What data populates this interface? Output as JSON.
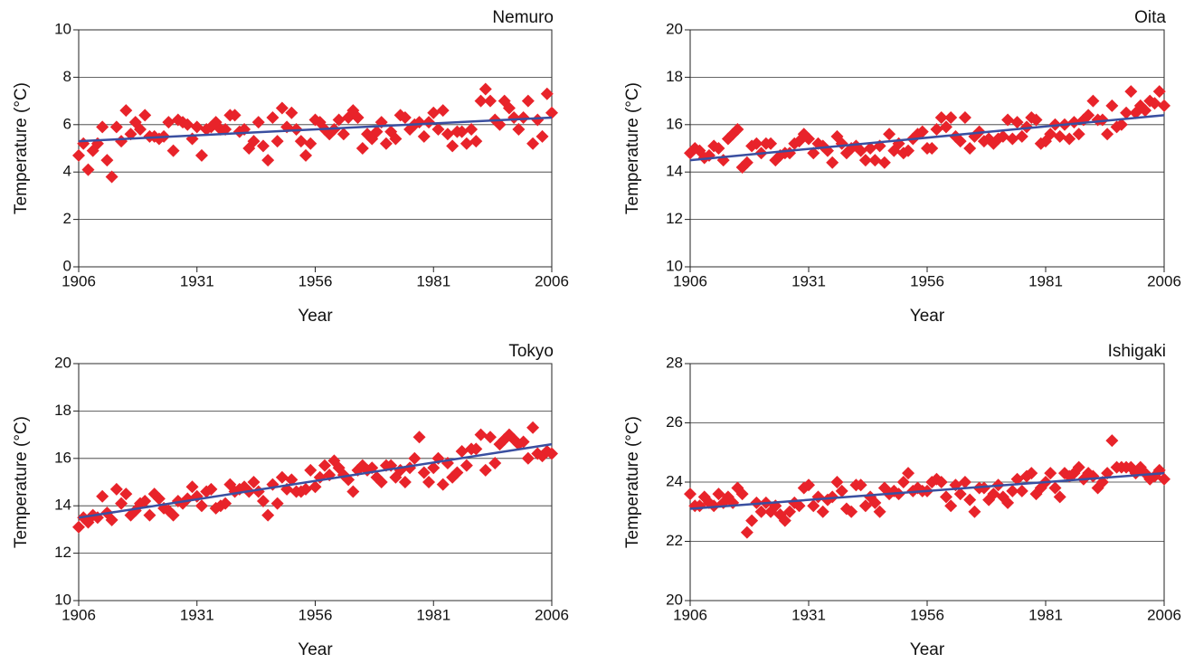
{
  "chart_data": [
    {
      "type": "scatter",
      "title": "Nemuro",
      "x_label": "Year",
      "y_label": "Temperature (°C)",
      "grid": true,
      "color": "#e8232a",
      "xlim": [
        1906,
        2006
      ],
      "xticks": [
        1906,
        1931,
        1956,
        1981,
        2006
      ],
      "ylim": [
        0,
        10
      ],
      "yticks": [
        0,
        2,
        4,
        6,
        8,
        10
      ],
      "x": [
        1906,
        1907,
        1908,
        1909,
        1910,
        1911,
        1912,
        1913,
        1914,
        1915,
        1916,
        1917,
        1918,
        1919,
        1920,
        1921,
        1922,
        1923,
        1924,
        1925,
        1926,
        1927,
        1928,
        1929,
        1930,
        1931,
        1932,
        1933,
        1934,
        1935,
        1936,
        1937,
        1938,
        1939,
        1940,
        1941,
        1942,
        1943,
        1944,
        1945,
        1946,
        1947,
        1948,
        1949,
        1950,
        1951,
        1952,
        1953,
        1954,
        1955,
        1956,
        1957,
        1958,
        1959,
        1960,
        1961,
        1962,
        1963,
        1964,
        1965,
        1966,
        1967,
        1968,
        1969,
        1970,
        1971,
        1972,
        1973,
        1974,
        1975,
        1976,
        1977,
        1978,
        1979,
        1980,
        1981,
        1982,
        1983,
        1984,
        1985,
        1986,
        1987,
        1988,
        1989,
        1990,
        1991,
        1992,
        1993,
        1994,
        1995,
        1996,
        1997,
        1998,
        1999,
        2000,
        2001,
        2002,
        2003,
        2004,
        2005,
        2006
      ],
      "values": [
        4.7,
        5.2,
        4.1,
        4.9,
        5.2,
        5.9,
        4.5,
        3.8,
        5.9,
        5.3,
        6.6,
        5.6,
        6.1,
        5.8,
        6.4,
        5.5,
        5.5,
        5.4,
        5.5,
        6.1,
        4.9,
        6.2,
        6.1,
        6.0,
        5.4,
        5.9,
        4.7,
        5.8,
        5.9,
        6.1,
        5.8,
        5.8,
        6.4,
        6.4,
        5.7,
        5.8,
        5.0,
        5.3,
        6.1,
        5.1,
        4.5,
        6.3,
        5.3,
        6.7,
        5.9,
        6.5,
        5.8,
        5.3,
        4.7,
        5.2,
        6.2,
        6.1,
        5.8,
        5.6,
        5.8,
        6.2,
        5.6,
        6.3,
        6.6,
        6.3,
        5.0,
        5.6,
        5.4,
        5.7,
        6.1,
        5.2,
        5.7,
        5.4,
        6.4,
        6.3,
        5.8,
        6.0,
        6.1,
        5.5,
        6.1,
        6.5,
        5.8,
        6.6,
        5.6,
        5.1,
        5.7,
        5.7,
        5.2,
        5.8,
        5.3,
        7.0,
        7.5,
        7.0,
        6.2,
        6.0,
        7.0,
        6.7,
        6.3,
        5.8,
        6.3,
        7.0,
        5.2,
        6.2,
        5.5,
        7.3,
        6.5
      ],
      "trend": {
        "x": [
          1906,
          2006
        ],
        "values": [
          5.3,
          6.3
        ],
        "color": "#3a4fa0"
      }
    },
    {
      "type": "scatter",
      "title": "Oita",
      "x_label": "Year",
      "y_label": "Temperature (°C)",
      "grid": true,
      "color": "#e8232a",
      "xlim": [
        1906,
        2006
      ],
      "xticks": [
        1906,
        1931,
        1956,
        1981,
        2006
      ],
      "ylim": [
        10,
        20
      ],
      "yticks": [
        10,
        12,
        14,
        16,
        18,
        20
      ],
      "x": [
        1906,
        1907,
        1908,
        1909,
        1910,
        1911,
        1912,
        1913,
        1914,
        1915,
        1916,
        1917,
        1918,
        1919,
        1920,
        1921,
        1922,
        1923,
        1924,
        1925,
        1926,
        1927,
        1928,
        1929,
        1930,
        1931,
        1932,
        1933,
        1934,
        1935,
        1936,
        1937,
        1938,
        1939,
        1940,
        1941,
        1942,
        1943,
        1944,
        1945,
        1946,
        1947,
        1948,
        1949,
        1950,
        1951,
        1952,
        1953,
        1954,
        1955,
        1956,
        1957,
        1958,
        1959,
        1960,
        1961,
        1962,
        1963,
        1964,
        1965,
        1966,
        1967,
        1968,
        1969,
        1970,
        1971,
        1972,
        1973,
        1974,
        1975,
        1976,
        1977,
        1978,
        1979,
        1980,
        1981,
        1982,
        1983,
        1984,
        1985,
        1986,
        1987,
        1988,
        1989,
        1990,
        1991,
        1992,
        1993,
        1994,
        1995,
        1996,
        1997,
        1998,
        1999,
        2000,
        2001,
        2002,
        2003,
        2004,
        2005,
        2006
      ],
      "values": [
        14.8,
        15.0,
        14.9,
        14.6,
        14.7,
        15.1,
        15.0,
        14.5,
        15.4,
        15.6,
        15.8,
        14.2,
        14.4,
        15.1,
        15.2,
        14.8,
        15.2,
        15.2,
        14.5,
        14.7,
        14.8,
        14.8,
        15.2,
        15.3,
        15.6,
        15.4,
        14.8,
        15.2,
        15.1,
        14.9,
        14.4,
        15.5,
        15.2,
        14.8,
        15.0,
        15.1,
        14.9,
        14.5,
        15.0,
        14.5,
        15.1,
        14.4,
        15.6,
        14.9,
        15.2,
        14.8,
        14.9,
        15.4,
        15.6,
        15.7,
        15.0,
        15.0,
        15.8,
        16.3,
        15.9,
        16.3,
        15.5,
        15.3,
        16.3,
        15.0,
        15.5,
        15.7,
        15.3,
        15.4,
        15.2,
        15.4,
        15.5,
        16.2,
        15.4,
        16.1,
        15.5,
        15.9,
        16.3,
        16.2,
        15.2,
        15.3,
        15.6,
        16.0,
        15.5,
        16.0,
        15.4,
        16.1,
        15.6,
        16.2,
        16.4,
        17.0,
        16.2,
        16.2,
        15.6,
        16.8,
        15.9,
        16.0,
        16.5,
        17.4,
        16.5,
        16.8,
        16.6,
        17.0,
        16.9,
        17.4,
        16.8
      ],
      "trend": {
        "x": [
          1906,
          2006
        ],
        "values": [
          14.5,
          16.4
        ],
        "color": "#3a4fa0"
      }
    },
    {
      "type": "scatter",
      "title": "Tokyo",
      "x_label": "Year",
      "y_label": "Temperature (°C)",
      "grid": true,
      "color": "#e8232a",
      "xlim": [
        1906,
        2006
      ],
      "xticks": [
        1906,
        1931,
        1956,
        1981,
        2006
      ],
      "ylim": [
        10,
        20
      ],
      "yticks": [
        10,
        12,
        14,
        16,
        18,
        20
      ],
      "x": [
        1906,
        1907,
        1908,
        1909,
        1910,
        1911,
        1912,
        1913,
        1914,
        1915,
        1916,
        1917,
        1918,
        1919,
        1920,
        1921,
        1922,
        1923,
        1924,
        1925,
        1926,
        1927,
        1928,
        1929,
        1930,
        1931,
        1932,
        1933,
        1934,
        1935,
        1936,
        1937,
        1938,
        1939,
        1940,
        1941,
        1942,
        1943,
        1944,
        1945,
        1946,
        1947,
        1948,
        1949,
        1950,
        1951,
        1952,
        1953,
        1954,
        1955,
        1956,
        1957,
        1958,
        1959,
        1960,
        1961,
        1962,
        1963,
        1964,
        1965,
        1966,
        1967,
        1968,
        1969,
        1970,
        1971,
        1972,
        1973,
        1974,
        1975,
        1976,
        1977,
        1978,
        1979,
        1980,
        1981,
        1982,
        1983,
        1984,
        1985,
        1986,
        1987,
        1988,
        1989,
        1990,
        1991,
        1992,
        1993,
        1994,
        1995,
        1996,
        1997,
        1998,
        1999,
        2000,
        2001,
        2002,
        2003,
        2004,
        2005,
        2006
      ],
      "values": [
        13.1,
        13.5,
        13.3,
        13.6,
        13.5,
        14.4,
        13.7,
        13.4,
        14.7,
        14.1,
        14.5,
        13.6,
        13.8,
        14.1,
        14.2,
        13.6,
        14.5,
        14.3,
        13.9,
        13.8,
        13.6,
        14.2,
        14.1,
        14.3,
        14.8,
        14.4,
        14.0,
        14.6,
        14.7,
        13.9,
        14.0,
        14.1,
        14.9,
        14.6,
        14.7,
        14.8,
        14.6,
        15.0,
        14.6,
        14.2,
        13.6,
        14.9,
        14.1,
        15.2,
        14.7,
        15.1,
        14.6,
        14.6,
        14.7,
        15.5,
        14.8,
        15.2,
        15.7,
        15.3,
        15.9,
        15.6,
        15.3,
        15.1,
        14.6,
        15.5,
        15.7,
        15.5,
        15.6,
        15.2,
        15.0,
        15.7,
        15.7,
        15.2,
        15.5,
        15.0,
        15.6,
        16.0,
        16.9,
        15.4,
        15.0,
        15.6,
        16.0,
        14.9,
        15.8,
        15.2,
        15.4,
        16.3,
        15.7,
        16.4,
        16.4,
        17.0,
        15.5,
        16.9,
        15.8,
        16.6,
        16.8,
        17.0,
        16.8,
        16.6,
        16.7,
        16.0,
        17.3,
        16.2,
        16.1,
        16.3,
        16.2
      ],
      "trend": {
        "x": [
          1906,
          2006
        ],
        "values": [
          13.5,
          16.6
        ],
        "color": "#3a4fa0"
      }
    },
    {
      "type": "scatter",
      "title": "Ishigaki",
      "x_label": "Year",
      "y_label": "Temperature (°C)",
      "grid": true,
      "color": "#e8232a",
      "xlim": [
        1906,
        2006
      ],
      "xticks": [
        1906,
        1931,
        1956,
        1981,
        2006
      ],
      "ylim": [
        20,
        28
      ],
      "yticks": [
        20,
        22,
        24,
        26,
        28
      ],
      "x": [
        1906,
        1907,
        1908,
        1909,
        1910,
        1911,
        1912,
        1913,
        1914,
        1915,
        1916,
        1917,
        1918,
        1919,
        1920,
        1921,
        1922,
        1923,
        1924,
        1925,
        1926,
        1927,
        1928,
        1929,
        1930,
        1931,
        1932,
        1933,
        1934,
        1935,
        1936,
        1937,
        1938,
        1939,
        1940,
        1941,
        1942,
        1943,
        1944,
        1945,
        1946,
        1947,
        1948,
        1949,
        1950,
        1951,
        1952,
        1953,
        1954,
        1955,
        1956,
        1957,
        1958,
        1959,
        1960,
        1961,
        1962,
        1963,
        1964,
        1965,
        1966,
        1967,
        1968,
        1969,
        1970,
        1971,
        1972,
        1973,
        1974,
        1975,
        1976,
        1977,
        1978,
        1979,
        1980,
        1981,
        1982,
        1983,
        1984,
        1985,
        1986,
        1987,
        1988,
        1989,
        1990,
        1991,
        1992,
        1993,
        1994,
        1995,
        1996,
        1997,
        1998,
        1999,
        2000,
        2001,
        2002,
        2003,
        2004,
        2005,
        2006
      ],
      "values": [
        23.6,
        23.2,
        23.2,
        23.5,
        23.3,
        23.2,
        23.6,
        23.3,
        23.5,
        23.3,
        23.8,
        23.6,
        22.3,
        22.7,
        23.3,
        23.0,
        23.3,
        23.0,
        23.2,
        22.9,
        22.7,
        23.0,
        23.3,
        23.2,
        23.8,
        23.9,
        23.2,
        23.5,
        23.0,
        23.4,
        23.5,
        24.0,
        23.7,
        23.1,
        23.0,
        23.9,
        23.9,
        23.2,
        23.5,
        23.3,
        23.0,
        23.8,
        23.6,
        23.7,
        23.6,
        24.0,
        24.3,
        23.7,
        23.8,
        23.7,
        23.7,
        24.0,
        24.1,
        24.0,
        23.5,
        23.2,
        23.9,
        23.6,
        24.0,
        23.4,
        23.0,
        23.8,
        23.8,
        23.4,
        23.6,
        23.9,
        23.5,
        23.3,
        23.7,
        24.1,
        23.7,
        24.2,
        24.3,
        23.6,
        23.8,
        24.0,
        24.3,
        23.8,
        23.5,
        24.3,
        24.2,
        24.3,
        24.5,
        24.1,
        24.3,
        24.2,
        23.8,
        24.0,
        24.3,
        25.4,
        24.5,
        24.5,
        24.5,
        24.5,
        24.3,
        24.5,
        24.3,
        24.1,
        24.2,
        24.4,
        24.1
      ],
      "trend": {
        "x": [
          1906,
          2006
        ],
        "values": [
          23.1,
          24.3
        ],
        "color": "#3a4fa0"
      }
    }
  ]
}
